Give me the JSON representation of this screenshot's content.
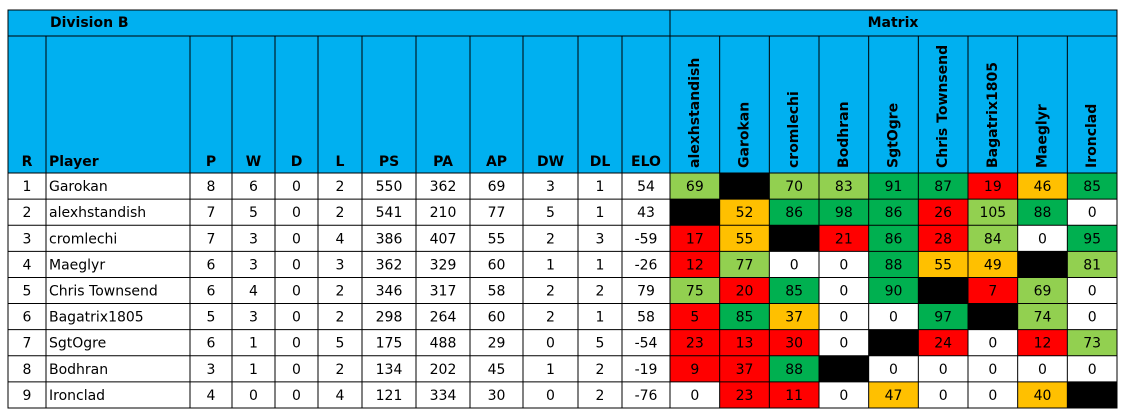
{
  "table": {
    "title": "Division B",
    "matrix_title": "Matrix",
    "columns": [
      "R",
      "Player",
      "P",
      "W",
      "D",
      "L",
      "PS",
      "PA",
      "AP",
      "DW",
      "DL",
      "ELO"
    ],
    "matrix_columns": [
      "alexhstandish",
      "Garokan",
      "cromlechi",
      "Bodhran",
      "SgtOgre",
      "Chris Townsend",
      "Bagatrix1805",
      "Maeglyr",
      "Ironclad"
    ],
    "rows": [
      [
        1,
        "Garokan",
        8,
        6,
        0,
        2,
        550,
        362,
        69,
        3,
        1,
        54
      ],
      [
        2,
        "alexhstandish",
        7,
        5,
        0,
        2,
        541,
        210,
        77,
        5,
        1,
        43
      ],
      [
        3,
        "cromlechi",
        7,
        3,
        0,
        4,
        386,
        407,
        55,
        2,
        3,
        -59
      ],
      [
        4,
        "Maeglyr",
        6,
        3,
        0,
        3,
        362,
        329,
        60,
        1,
        1,
        -26
      ],
      [
        5,
        "Chris Townsend",
        6,
        4,
        0,
        2,
        346,
        317,
        58,
        2,
        2,
        79
      ],
      [
        6,
        "Bagatrix1805",
        5,
        3,
        0,
        2,
        298,
        264,
        60,
        2,
        1,
        58
      ],
      [
        7,
        "SgtOgre",
        6,
        1,
        0,
        5,
        175,
        488,
        29,
        0,
        5,
        -54
      ],
      [
        8,
        "Bodhran",
        3,
        1,
        0,
        2,
        134,
        202,
        45,
        1,
        2,
        -19
      ],
      [
        9,
        "Ironclad",
        4,
        0,
        0,
        4,
        121,
        334,
        30,
        0,
        2,
        -76
      ]
    ],
    "matrix": {
      "values": [
        [
          69,
          null,
          70,
          83,
          91,
          87,
          19,
          46,
          85
        ],
        [
          null,
          52,
          86,
          98,
          86,
          26,
          105,
          88,
          0
        ],
        [
          17,
          55,
          null,
          21,
          86,
          28,
          84,
          0,
          95
        ],
        [
          12,
          77,
          0,
          0,
          88,
          55,
          49,
          null,
          81
        ],
        [
          75,
          20,
          85,
          0,
          90,
          null,
          7,
          69,
          0
        ],
        [
          5,
          85,
          37,
          0,
          0,
          97,
          null,
          74,
          0
        ],
        [
          23,
          13,
          30,
          0,
          null,
          24,
          0,
          12,
          73
        ],
        [
          9,
          37,
          88,
          null,
          0,
          0,
          0,
          0,
          0
        ],
        [
          0,
          23,
          11,
          0,
          47,
          0,
          0,
          40,
          null
        ]
      ],
      "colors": [
        [
          "#92d050",
          "#000000",
          "#92d050",
          "#92d050",
          "#00b050",
          "#00b050",
          "#ff0000",
          "#ffc000",
          "#00b050"
        ],
        [
          "#000000",
          "#ffc000",
          "#00b050",
          "#00b050",
          "#00b050",
          "#ff0000",
          "#92d050",
          "#00b050",
          "#ffffff"
        ],
        [
          "#ff0000",
          "#ffc000",
          "#000000",
          "#ff0000",
          "#00b050",
          "#ff0000",
          "#92d050",
          "#ffffff",
          "#00b050"
        ],
        [
          "#ff0000",
          "#92d050",
          "#ffffff",
          "#ffffff",
          "#00b050",
          "#ffc000",
          "#ffc000",
          "#000000",
          "#92d050"
        ],
        [
          "#92d050",
          "#ff0000",
          "#00b050",
          "#ffffff",
          "#00b050",
          "#000000",
          "#ff0000",
          "#92d050",
          "#ffffff"
        ],
        [
          "#ff0000",
          "#00b050",
          "#ffc000",
          "#ffffff",
          "#ffffff",
          "#00b050",
          "#000000",
          "#92d050",
          "#ffffff"
        ],
        [
          "#ff0000",
          "#ff0000",
          "#ff0000",
          "#ffffff",
          "#000000",
          "#ff0000",
          "#ffffff",
          "#ff0000",
          "#92d050"
        ],
        [
          "#ff0000",
          "#ff0000",
          "#00b050",
          "#000000",
          "#ffffff",
          "#ffffff",
          "#ffffff",
          "#ffffff",
          "#ffffff"
        ],
        [
          "#ffffff",
          "#ff0000",
          "#ff0000",
          "#ffffff",
          "#ffc000",
          "#ffffff",
          "#ffffff",
          "#ffc000",
          "#000000"
        ]
      ]
    }
  }
}
